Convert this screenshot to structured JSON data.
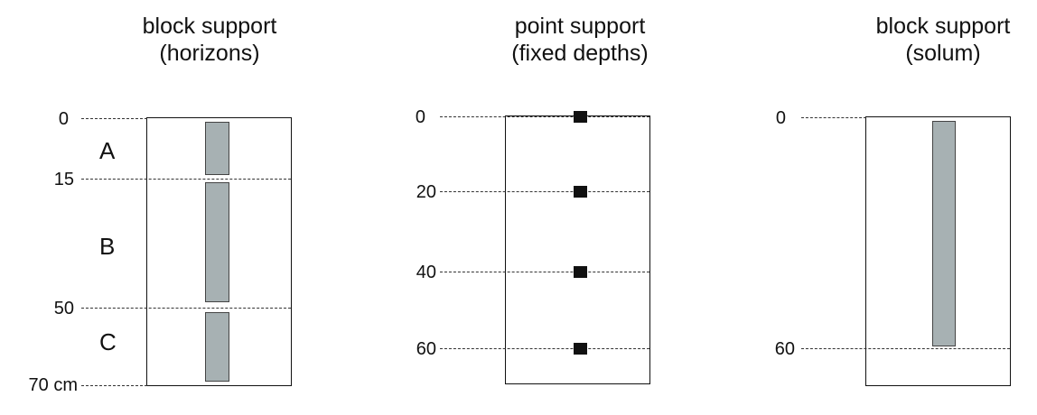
{
  "panels": [
    {
      "title_line1": "block support",
      "title_line2": "(horizons)",
      "depth_labels": [
        "0",
        "15",
        "50",
        "70 cm"
      ],
      "horizons": [
        "A",
        "B",
        "C"
      ]
    },
    {
      "title_line1": "point support",
      "title_line2": "(fixed depths)",
      "depth_labels": [
        "0",
        "20",
        "40",
        "60"
      ]
    },
    {
      "title_line1": "block support",
      "title_line2": "(solum)",
      "depth_labels": [
        "0",
        "60"
      ]
    }
  ]
}
